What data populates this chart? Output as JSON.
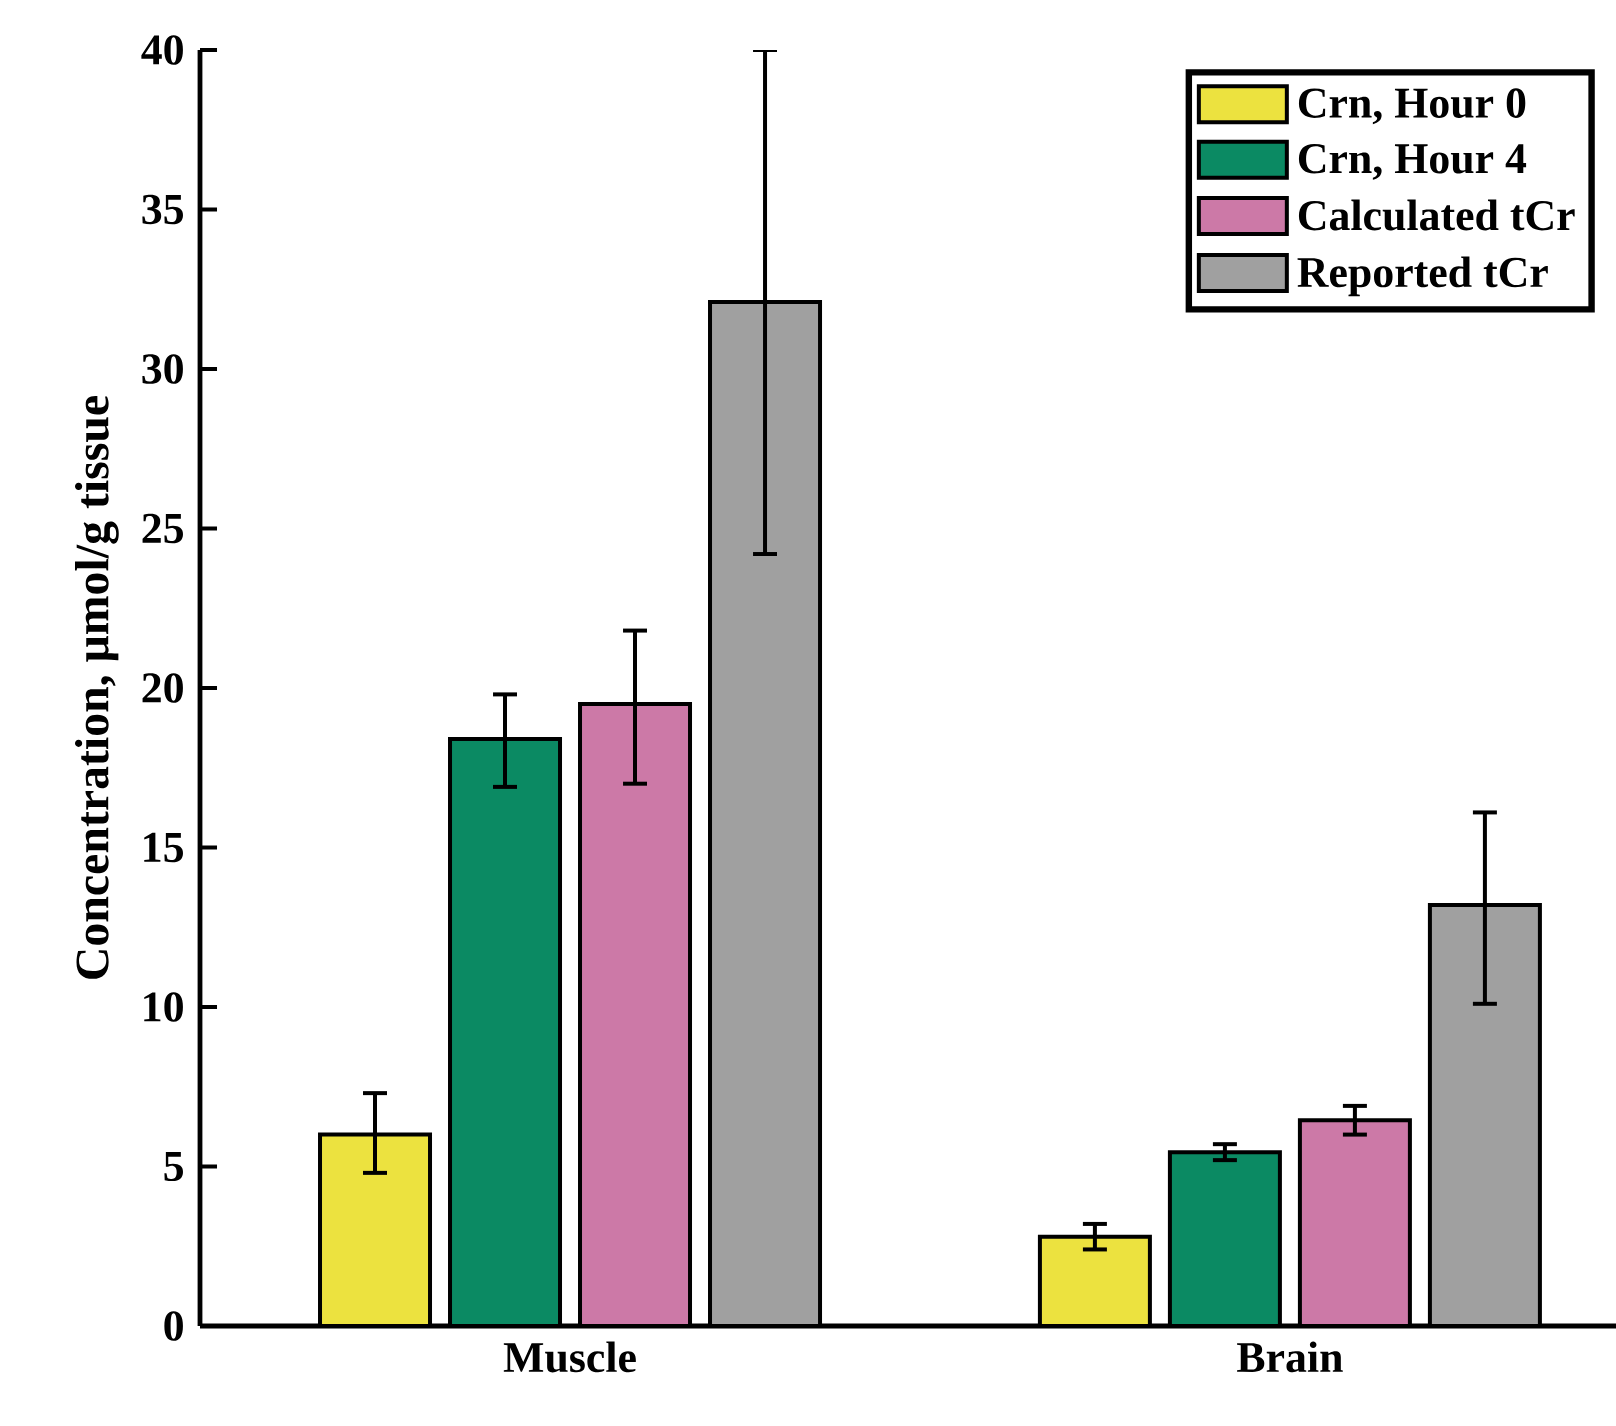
{
  "chart_data": {
    "type": "bar",
    "ylabel": "Concentration, μmol/g tissue",
    "categories": [
      "Muscle",
      "Brain"
    ],
    "series": [
      {
        "name": "Crn, Hour 0",
        "color": "#ece23f",
        "values": [
          6.0,
          2.8
        ],
        "errors": [
          [
            4.8,
            7.3
          ],
          [
            2.4,
            3.2
          ]
        ]
      },
      {
        "name": "Crn, Hour 4",
        "color": "#0b8a63",
        "values": [
          18.4,
          5.45
        ],
        "errors": [
          [
            16.9,
            19.8
          ],
          [
            5.2,
            5.7
          ]
        ]
      },
      {
        "name": "Calculated tCr",
        "color": "#cc79a7",
        "values": [
          19.5,
          6.45
        ],
        "errors": [
          [
            17.0,
            21.8
          ],
          [
            6.0,
            6.9
          ]
        ]
      },
      {
        "name": "Reported tCr",
        "color": "#a0a0a0",
        "values": [
          32.1,
          13.2
        ],
        "errors": [
          [
            24.2,
            40.0
          ],
          [
            10.1,
            16.1
          ]
        ]
      }
    ],
    "ylim": [
      0,
      40
    ],
    "yticks": [
      0,
      5,
      10,
      15,
      20,
      25,
      30,
      35,
      40
    ],
    "legend": "top right",
    "grid": false
  }
}
